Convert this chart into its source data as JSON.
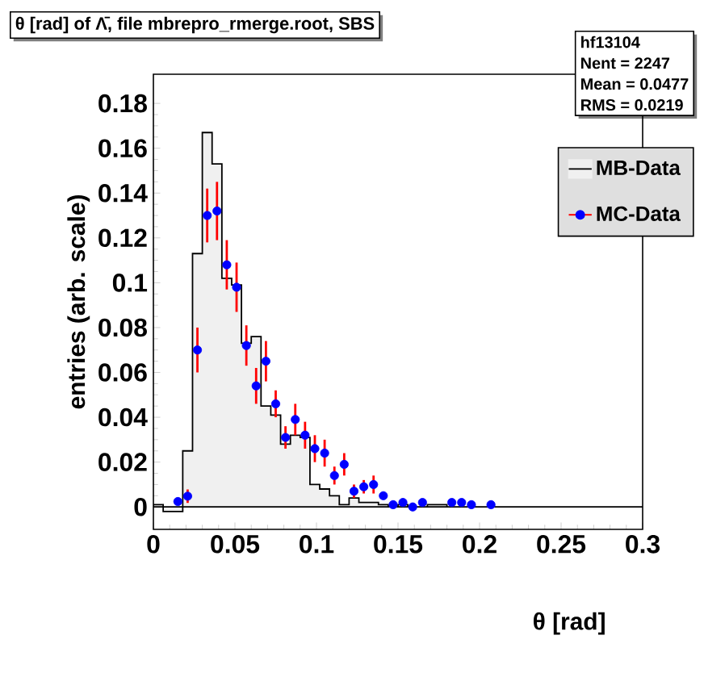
{
  "chart_data": {
    "type": "histogram",
    "title": "θ [rad] of Λ̄, file mbrepro_rmerge.root, SBS",
    "xlabel": "θ [rad]",
    "ylabel": "entries (arb. scale)",
    "xlim": [
      0,
      0.3
    ],
    "ylim": [
      -0.01,
      0.193
    ],
    "xticks": [
      0,
      0.05,
      0.1,
      0.15,
      0.2,
      0.25,
      0.3
    ],
    "yticks": [
      0,
      0.02,
      0.04,
      0.06,
      0.08,
      0.1,
      0.12,
      0.14,
      0.16,
      0.18
    ],
    "legend": "right",
    "annotations": [
      "hf13104",
      "Nent = 2247",
      "Mean = 0.0477",
      "RMS = 0.0219"
    ],
    "series": [
      {
        "name": "MB-Data",
        "color": "#f0f0f0",
        "bins": [
          0,
          0.006,
          0.012,
          0.018,
          0.024,
          0.03,
          0.036,
          0.042,
          0.048,
          0.054,
          0.06,
          0.066,
          0.072,
          0.078,
          0.084,
          0.09,
          0.096,
          0.102,
          0.108,
          0.114,
          0.12,
          0.126,
          0.132,
          0.138,
          0.144,
          0.15,
          0.156,
          0.162,
          0.168,
          0.174,
          0.18,
          0.186,
          0.192,
          0.198,
          0.204,
          0.21,
          0.216,
          0.222,
          0.228,
          0.234,
          0.24,
          0.246,
          0.252,
          0.258,
          0.264,
          0.27,
          0.276,
          0.282,
          0.288,
          0.294,
          0.3
        ],
        "values": [
          0.001,
          -0.002,
          -0.002,
          0.025,
          0.113,
          0.167,
          0.153,
          0.102,
          0.099,
          0.073,
          0.076,
          0.045,
          0.041,
          0.028,
          0.032,
          0.031,
          0.01,
          0.008,
          0.005,
          0.001,
          0.004,
          0.002,
          0.002,
          0.001,
          0,
          0.001,
          0,
          0,
          0.001,
          0.001,
          0,
          0,
          0,
          0,
          0,
          0,
          0,
          0,
          0,
          0,
          0,
          0,
          0,
          0,
          0,
          0,
          0,
          0,
          0,
          0
        ]
      },
      {
        "name": "MC-Data",
        "type": "scatter",
        "color": "#0000ff",
        "marker": "circle",
        "x": [
          0.015,
          0.021,
          0.027,
          0.033,
          0.039,
          0.045,
          0.051,
          0.057,
          0.063,
          0.069,
          0.075,
          0.081,
          0.087,
          0.093,
          0.099,
          0.105,
          0.111,
          0.117,
          0.123,
          0.129,
          0.135,
          0.141,
          0.147,
          0.153,
          0.159,
          0.165,
          0.183,
          0.189,
          0.195,
          0.207
        ],
        "values": [
          0.0024,
          0.0048,
          0.07,
          0.13,
          0.132,
          0.108,
          0.098,
          0.072,
          0.054,
          0.065,
          0.046,
          0.031,
          0.039,
          0.032,
          0.026,
          0.024,
          0.014,
          0.019,
          0.007,
          0.009,
          0.01,
          0.005,
          0.001,
          0.002,
          0,
          0.002,
          0.002,
          0.002,
          0.001,
          0.001
        ],
        "errors": [
          0.001,
          0.003,
          0.01,
          0.012,
          0.013,
          0.011,
          0.011,
          0.009,
          0.008,
          0.009,
          0.006,
          0.005,
          0.007,
          0.006,
          0.006,
          0.006,
          0.004,
          0.005,
          0.003,
          0.003,
          0.004,
          0.001,
          0.001,
          0.001,
          0.001,
          0.001,
          0.001,
          0.001,
          0.001,
          0.001
        ]
      }
    ]
  }
}
